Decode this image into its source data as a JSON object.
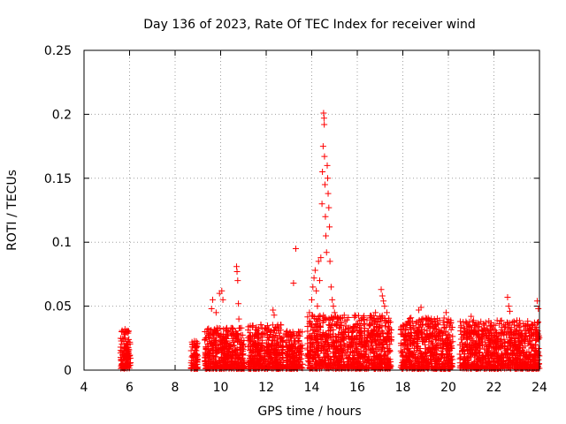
{
  "chart_data": {
    "type": "scatter",
    "title": "Day 136 of 2023, Rate Of TEC Index for receiver wind",
    "xlabel": "GPS time / hours",
    "ylabel": "ROTI / TECUs",
    "xlim": [
      4,
      24
    ],
    "ylim": [
      0,
      0.25
    ],
    "xticks": [
      4,
      6,
      8,
      10,
      12,
      14,
      16,
      18,
      20,
      22,
      24
    ],
    "xtick_labels": [
      "4",
      "6",
      "8",
      "10",
      "12",
      "14",
      "16",
      "18",
      "20",
      "22",
      "24"
    ],
    "yticks": [
      0,
      0.05,
      0.1,
      0.15,
      0.2,
      0.25
    ],
    "ytick_labels": [
      "0",
      "0.05",
      "0.1",
      "0.15",
      "0.2",
      "0.25"
    ],
    "grid": true,
    "marker": "+",
    "color": "#ff0000",
    "dense_bands": [
      {
        "x_start": 5.6,
        "x_end": 6.05,
        "y_max": 0.03
      },
      {
        "x_start": 8.7,
        "x_end": 9.0,
        "y_max": 0.022
      },
      {
        "x_start": 9.3,
        "x_end": 11.05,
        "y_max": 0.032
      },
      {
        "x_start": 11.2,
        "x_end": 12.75,
        "y_max": 0.035
      },
      {
        "x_start": 12.85,
        "x_end": 13.6,
        "y_max": 0.03
      },
      {
        "x_start": 13.8,
        "x_end": 17.5,
        "y_max": 0.042
      },
      {
        "x_start": 17.9,
        "x_end": 20.2,
        "y_max": 0.04
      },
      {
        "x_start": 20.5,
        "x_end": 24.0,
        "y_max": 0.038
      }
    ],
    "outliers": [
      {
        "x": 5.8,
        "y": 0.032
      },
      {
        "x": 9.6,
        "y": 0.048
      },
      {
        "x": 9.65,
        "y": 0.055
      },
      {
        "x": 9.8,
        "y": 0.045
      },
      {
        "x": 9.95,
        "y": 0.06
      },
      {
        "x": 10.05,
        "y": 0.062
      },
      {
        "x": 10.1,
        "y": 0.055
      },
      {
        "x": 10.7,
        "y": 0.081
      },
      {
        "x": 10.72,
        "y": 0.077
      },
      {
        "x": 10.75,
        "y": 0.07
      },
      {
        "x": 10.78,
        "y": 0.052
      },
      {
        "x": 10.8,
        "y": 0.04
      },
      {
        "x": 12.3,
        "y": 0.047
      },
      {
        "x": 12.35,
        "y": 0.043
      },
      {
        "x": 13.2,
        "y": 0.068
      },
      {
        "x": 13.3,
        "y": 0.095
      },
      {
        "x": 13.9,
        "y": 0.045
      },
      {
        "x": 14.0,
        "y": 0.055
      },
      {
        "x": 14.05,
        "y": 0.065
      },
      {
        "x": 14.1,
        "y": 0.072
      },
      {
        "x": 14.15,
        "y": 0.078
      },
      {
        "x": 14.2,
        "y": 0.062
      },
      {
        "x": 14.25,
        "y": 0.05
      },
      {
        "x": 14.3,
        "y": 0.085
      },
      {
        "x": 14.35,
        "y": 0.07
      },
      {
        "x": 14.4,
        "y": 0.088
      },
      {
        "x": 14.45,
        "y": 0.13
      },
      {
        "x": 14.47,
        "y": 0.155
      },
      {
        "x": 14.5,
        "y": 0.175
      },
      {
        "x": 14.52,
        "y": 0.201
      },
      {
        "x": 14.54,
        "y": 0.197
      },
      {
        "x": 14.55,
        "y": 0.192
      },
      {
        "x": 14.56,
        "y": 0.167
      },
      {
        "x": 14.58,
        "y": 0.145
      },
      {
        "x": 14.6,
        "y": 0.12
      },
      {
        "x": 14.62,
        "y": 0.105
      },
      {
        "x": 14.65,
        "y": 0.092
      },
      {
        "x": 14.68,
        "y": 0.16
      },
      {
        "x": 14.7,
        "y": 0.15
      },
      {
        "x": 14.72,
        "y": 0.138
      },
      {
        "x": 14.75,
        "y": 0.127
      },
      {
        "x": 14.78,
        "y": 0.112
      },
      {
        "x": 14.8,
        "y": 0.085
      },
      {
        "x": 14.85,
        "y": 0.065
      },
      {
        "x": 14.9,
        "y": 0.055
      },
      {
        "x": 14.95,
        "y": 0.05
      },
      {
        "x": 15.0,
        "y": 0.045
      },
      {
        "x": 15.05,
        "y": 0.042
      },
      {
        "x": 16.8,
        "y": 0.045
      },
      {
        "x": 17.05,
        "y": 0.063
      },
      {
        "x": 17.1,
        "y": 0.058
      },
      {
        "x": 17.15,
        "y": 0.054
      },
      {
        "x": 17.2,
        "y": 0.05
      },
      {
        "x": 17.3,
        "y": 0.045
      },
      {
        "x": 18.7,
        "y": 0.047
      },
      {
        "x": 18.8,
        "y": 0.049
      },
      {
        "x": 19.9,
        "y": 0.045
      },
      {
        "x": 21.0,
        "y": 0.042
      },
      {
        "x": 22.6,
        "y": 0.057
      },
      {
        "x": 22.65,
        "y": 0.05
      },
      {
        "x": 22.7,
        "y": 0.046
      },
      {
        "x": 23.9,
        "y": 0.054
      },
      {
        "x": 23.95,
        "y": 0.048
      }
    ]
  }
}
